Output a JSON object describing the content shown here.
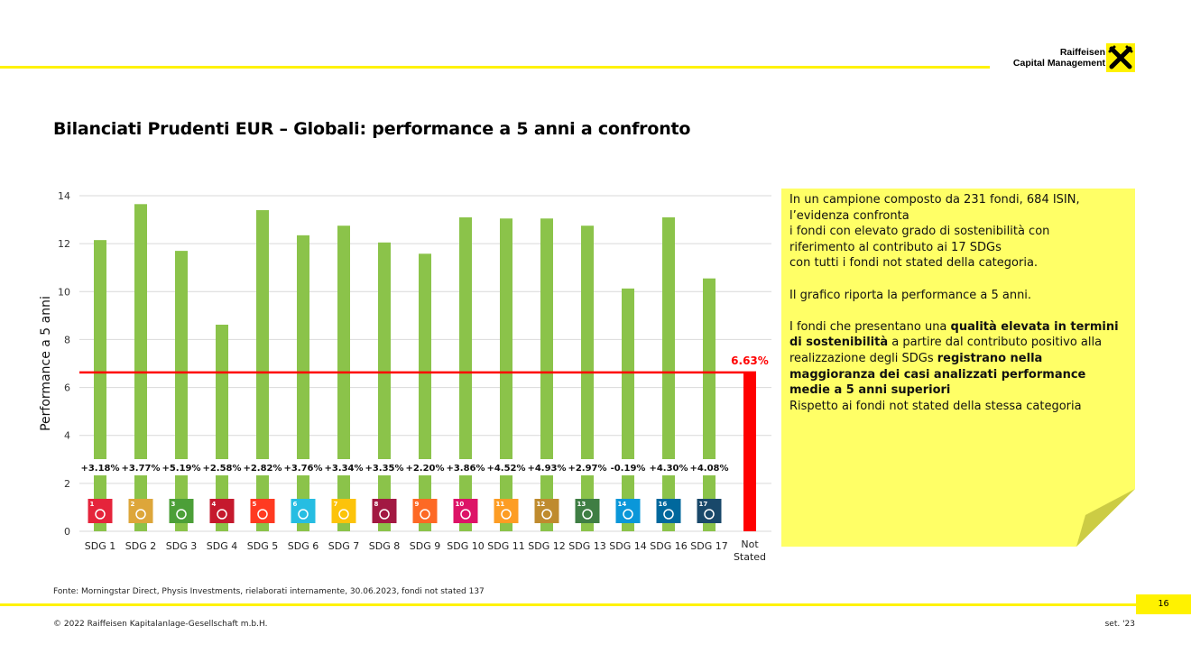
{
  "header": {
    "brand_line1": "Raiffeisen",
    "brand_line2": "Capital Management",
    "title": "Bilanciati Prudenti EUR – Globali: performance a 5 anni a confronto"
  },
  "colors": {
    "accent_yellow": "#fff200",
    "note_yellow": "#ffff66",
    "bar_green": "#8bc34a",
    "not_stated_red": "#ff0000"
  },
  "chart_data": {
    "type": "bar",
    "categories": [
      "SDG 1",
      "SDG 2",
      "SDG 3",
      "SDG 4",
      "SDG 5",
      "SDG 6",
      "SDG 7",
      "SDG 8",
      "SDG 9",
      "SDG 10",
      "SDG 11",
      "SDG 12",
      "SDG 13",
      "SDG 14",
      "SDG 16",
      "SDG 17",
      "Not Stated"
    ],
    "values": [
      12.15,
      13.65,
      11.7,
      8.62,
      13.4,
      12.35,
      12.75,
      12.05,
      11.58,
      13.1,
      13.05,
      13.05,
      12.75,
      10.13,
      13.1,
      10.55,
      6.63
    ],
    "diff_labels": [
      "+3.18%",
      "+3.77%",
      "+5.19%",
      "+2.58%",
      "+2.82%",
      "+3.76%",
      "+3.34%",
      "+3.35%",
      "+2.20%",
      "+3.86%",
      "+4.52%",
      "+4.93%",
      "+2.97%",
      "-0.19%",
      "+4.30%",
      "+4.08%"
    ],
    "reference_line": {
      "value": 6.63,
      "label": "6.63%"
    },
    "ylabel": "Performance a 5 anni",
    "ylim": [
      0,
      14
    ],
    "yticks": [
      "0",
      "2",
      "4",
      "6",
      "8",
      "10",
      "12",
      "14"
    ],
    "grid": true,
    "sdg_icon_numbers": [
      "1",
      "2",
      "3",
      "4",
      "5",
      "6",
      "7",
      "8",
      "9",
      "10",
      "11",
      "12",
      "13",
      "14",
      "16",
      "17"
    ],
    "sdg_icon_colors": [
      "#e5243b",
      "#dda63a",
      "#4c9f38",
      "#c5192d",
      "#ff3a21",
      "#26bde2",
      "#fcc30b",
      "#a21942",
      "#fd6925",
      "#dd1367",
      "#fd9d24",
      "#bf8b2e",
      "#3f7e44",
      "#0a97d9",
      "#00689d",
      "#19486a"
    ]
  },
  "note": {
    "p1_line1": "In un campione composto da 231 fondi, 684 ISIN,",
    "p1_line2": "l’evidenza confronta",
    "p1_line3": "i fondi con elevato grado di sostenibilità con",
    "p1_line4": "riferimento al contributo ai 17 SDGs",
    "p1_line5": "con tutti i fondi not stated della categoria.",
    "p2": "Il grafico riporta la performance a 5 anni.",
    "p3_a": "I fondi che presentano una ",
    "p3_b": "qualità elevata in termini di sostenibilità",
    "p3_c": " a partire dal contributo positivo alla realizzazione degli SDGs ",
    "p3_d": "registrano nella maggioranza dei casi analizzati performance medie a 5 anni superiori",
    "p3_e": "Rispetto ai fondi not stated della stessa categoria"
  },
  "footer": {
    "source": "Fonte: Morningstar Direct, Physis Investments, rielaborati internamente, 30.06.2023, fondi not stated 137",
    "page": "16",
    "copyright": "© 2022 Raiffeisen Kapitalanlage-Gesellschaft m.b.H.",
    "date": "set. '23"
  }
}
